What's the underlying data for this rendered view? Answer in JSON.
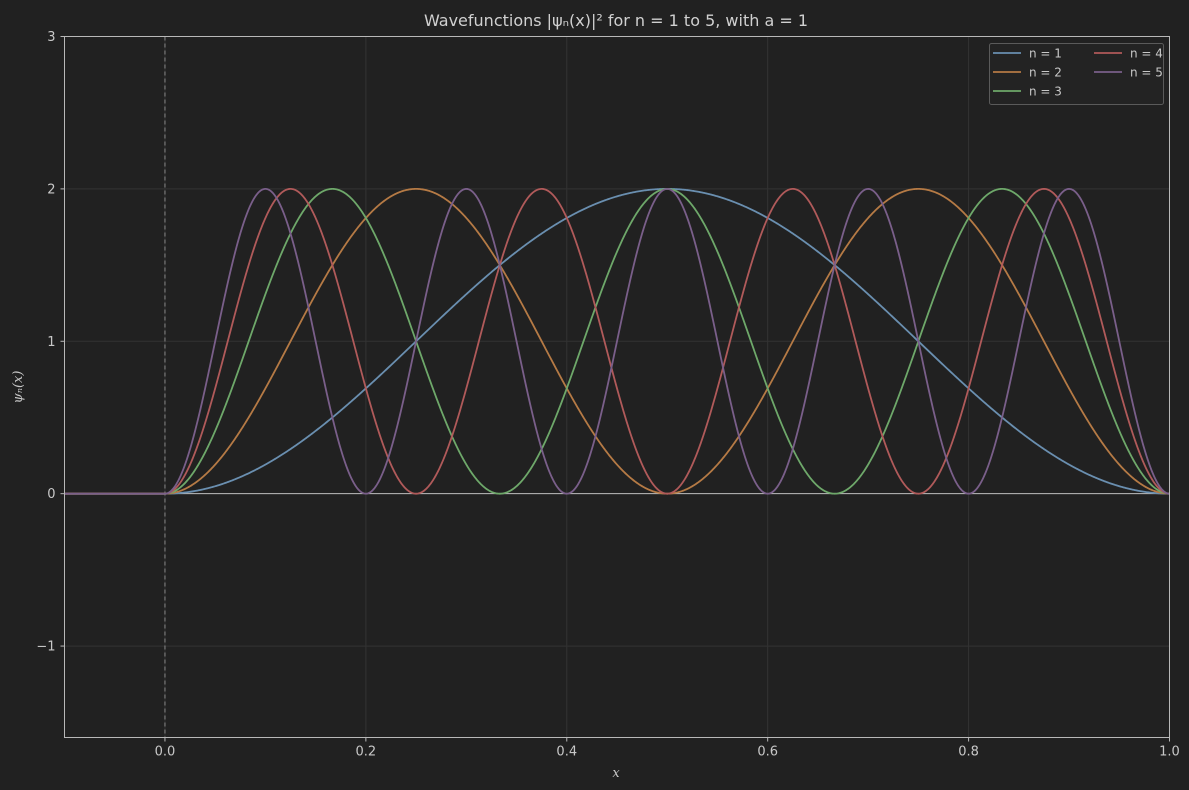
{
  "chart_data": {
    "type": "line",
    "title": "Wavefunctions |ψₙ(x)|² for n = 1 to 5, with a = 1",
    "xlabel": "x",
    "ylabel": "ψₙ(x)",
    "xlim": [
      -0.1,
      1.0
    ],
    "ylim": [
      -1.6,
      3.0
    ],
    "x_ticks": [
      "0.0",
      "0.2",
      "0.4",
      "0.6",
      "0.8",
      "1.0"
    ],
    "y_ticks": [
      "−1",
      "0",
      "1",
      "2",
      "3"
    ],
    "grid": true,
    "legend_position": "top-right",
    "legend_columns": 2,
    "reference_lines": {
      "vertical_dashed_at_x": 0.0,
      "horizontal_at_y": 0.0
    },
    "function": "2 * sin(n * pi * x / a)^2 for 0 <= x <= a, 0 for x < 0",
    "a": 1,
    "x_samples": [
      -0.1,
      0.0,
      0.05,
      0.1,
      0.125,
      0.15,
      0.1667,
      0.2,
      0.25,
      0.3,
      0.3333,
      0.375,
      0.4,
      0.5,
      0.6,
      0.625,
      0.6667,
      0.7,
      0.75,
      0.8,
      0.8333,
      0.875,
      0.9,
      1.0
    ],
    "series": [
      {
        "name": "n = 1",
        "n": 1,
        "color": "#6a8fb0",
        "values": [
          0,
          0,
          0.049,
          0.191,
          0.293,
          0.412,
          0.5,
          0.691,
          1.0,
          1.309,
          1.5,
          1.707,
          1.809,
          2.0,
          1.809,
          1.707,
          1.5,
          1.309,
          1.0,
          0.691,
          0.5,
          0.293,
          0.191,
          0
        ]
      },
      {
        "name": "n = 2",
        "n": 2,
        "color": "#b57a45",
        "values": [
          0,
          0,
          0.191,
          0.691,
          1.0,
          1.309,
          1.5,
          1.809,
          2.0,
          1.809,
          1.5,
          1.0,
          0.691,
          0,
          0.691,
          1.0,
          1.5,
          1.809,
          2.0,
          1.809,
          1.5,
          1.0,
          0.691,
          0
        ]
      },
      {
        "name": "n = 3",
        "n": 3,
        "color": "#6ea86a",
        "values": [
          0,
          0,
          0.412,
          1.309,
          1.707,
          1.975,
          2.0,
          1.809,
          1.0,
          0.191,
          0,
          0.293,
          0.691,
          2.0,
          0.691,
          0.293,
          0,
          0.191,
          1.0,
          1.809,
          2.0,
          1.707,
          1.309,
          0
        ]
      },
      {
        "name": "n = 4",
        "n": 4,
        "color": "#b05a5a",
        "values": [
          0,
          0,
          0.691,
          1.809,
          2.0,
          1.809,
          1.5,
          0.691,
          0,
          0.691,
          1.5,
          2.0,
          1.809,
          0,
          1.809,
          2.0,
          1.5,
          0.691,
          0,
          0.691,
          1.5,
          2.0,
          1.809,
          0
        ]
      },
      {
        "name": "n = 5",
        "n": 5,
        "color": "#7a5f8a",
        "values": [
          0,
          0,
          1.0,
          2.0,
          1.707,
          1.0,
          0.5,
          0,
          1.0,
          2.0,
          1.5,
          0.293,
          0,
          2.0,
          0,
          0.293,
          1.5,
          2.0,
          1.0,
          0,
          0.5,
          1.707,
          2.0,
          0
        ]
      }
    ]
  }
}
